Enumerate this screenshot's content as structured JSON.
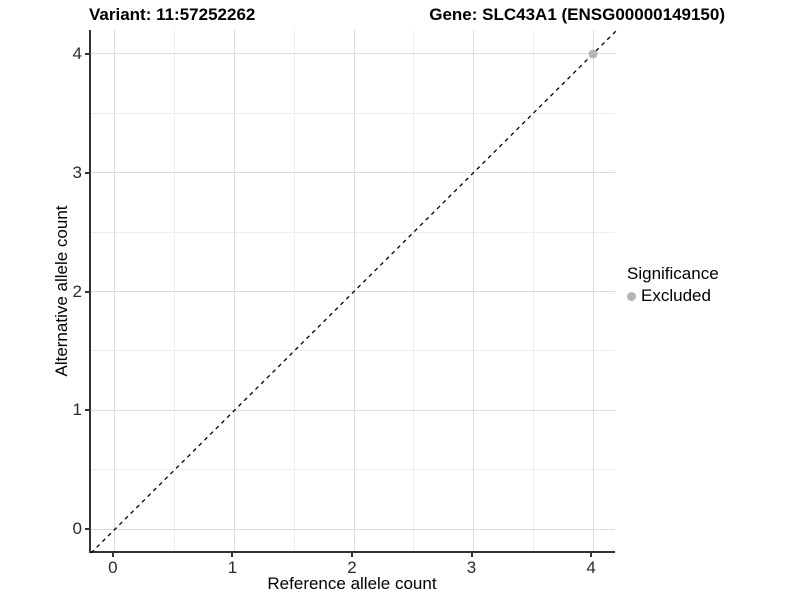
{
  "header": {
    "variant_title": "Variant: 11:57252262",
    "gene_title": "Gene: SLC43A1 (ENSG00000149150)"
  },
  "chart_data": {
    "type": "scatter",
    "title_left": "Variant: 11:57252262",
    "title_right": "Gene: SLC43A1 (ENSG00000149150)",
    "xlabel": "Reference allele count",
    "ylabel": "Alternative allele count",
    "xlim": [
      -0.2,
      4.2
    ],
    "ylim": [
      -0.2,
      4.2
    ],
    "xticks": [
      "0",
      "1",
      "2",
      "3",
      "4"
    ],
    "yticks": [
      "0",
      "1",
      "2",
      "3",
      "4"
    ],
    "xtick_values": [
      0,
      1,
      2,
      3,
      4
    ],
    "ytick_values": [
      0,
      1,
      2,
      3,
      4
    ],
    "minor_tick_values": [
      0.5,
      1.5,
      2.5,
      3.5
    ],
    "grid": {
      "major_color": "#dcdcdc",
      "minor_color": "#ededed",
      "on": true
    },
    "identity_line": {
      "type": "abline",
      "slope": 1,
      "intercept": 0,
      "style": "dashed",
      "color": "#000000",
      "from": [
        -0.2,
        -0.2
      ],
      "to": [
        4.2,
        4.2
      ]
    },
    "series": [
      {
        "name": "Excluded",
        "color": "#b5b5b5",
        "points": [
          {
            "x": 4,
            "y": 4
          }
        ]
      }
    ],
    "legend": {
      "title": "Significance",
      "position": "right",
      "entries": [
        {
          "label": "Excluded",
          "color": "#b5b5b5",
          "marker": "circle"
        }
      ]
    }
  }
}
